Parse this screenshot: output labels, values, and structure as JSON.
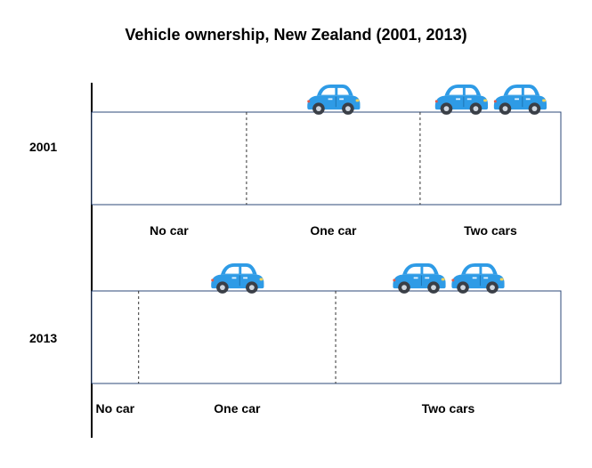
{
  "chart_data": {
    "type": "bar",
    "title": "Vehicle ownership, New Zealand (2001, 2013)",
    "stacked": true,
    "orientation": "horizontal",
    "unit_icon": "car-icon",
    "categories": [
      "2001",
      "2013"
    ],
    "series": [
      {
        "name": "No car",
        "values": [
          33,
          10
        ]
      },
      {
        "name": "One car",
        "values": [
          37,
          42
        ]
      },
      {
        "name": "Two cars",
        "values": [
          30,
          48
        ]
      }
    ],
    "cars_per_segment": [
      0,
      1,
      2
    ],
    "colors": {
      "car_body": "#2e9be6",
      "outline": "#2e4a7a",
      "axis": "#000000"
    }
  }
}
